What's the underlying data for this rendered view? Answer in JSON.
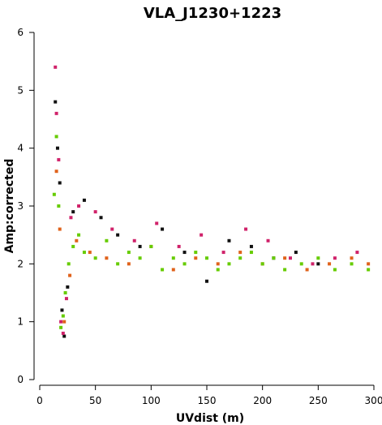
{
  "chart_data": {
    "type": "scatter",
    "title": "VLA_J1230+1223",
    "xlabel": "UVdist (m)",
    "ylabel": "Amp:corrected",
    "xlim": [
      0,
      300
    ],
    "ylim": [
      0,
      6
    ],
    "x_ticks": [
      "0",
      "50",
      "100",
      "150",
      "200",
      "250",
      "300"
    ],
    "y_ticks": [
      "0",
      "1",
      "2",
      "3",
      "4",
      "5",
      "6"
    ],
    "grid": false,
    "legend": "none",
    "series": [
      {
        "color": "#111111",
        "x": [
          14,
          16,
          18,
          20,
          22,
          25,
          30,
          40,
          55,
          70,
          90,
          110,
          130,
          150,
          170,
          190,
          210,
          230,
          250
        ],
        "y": [
          4.8,
          4.0,
          3.4,
          1.2,
          0.75,
          1.6,
          2.9,
          3.1,
          2.8,
          2.5,
          2.3,
          2.6,
          2.2,
          1.7,
          2.4,
          2.3,
          2.1,
          2.2,
          2.0
        ]
      },
      {
        "color": "#d0226a",
        "x": [
          14,
          15,
          17,
          19,
          21,
          24,
          28,
          35,
          50,
          65,
          85,
          105,
          125,
          145,
          165,
          185,
          205,
          225,
          245,
          265,
          285
        ],
        "y": [
          5.4,
          4.6,
          3.8,
          1.0,
          0.8,
          1.4,
          2.8,
          3.0,
          2.9,
          2.6,
          2.4,
          2.7,
          2.3,
          2.5,
          2.2,
          2.6,
          2.4,
          2.1,
          2.0,
          2.1,
          2.2
        ]
      },
      {
        "color": "#e0621b",
        "x": [
          15,
          18,
          22,
          27,
          33,
          45,
          60,
          80,
          100,
          120,
          140,
          160,
          180,
          200,
          220,
          240,
          260,
          280,
          295
        ],
        "y": [
          3.6,
          2.6,
          1.0,
          1.8,
          2.4,
          2.2,
          2.1,
          2.0,
          2.3,
          1.9,
          2.1,
          2.0,
          2.2,
          2.0,
          2.1,
          1.9,
          2.0,
          2.1,
          2.0
        ]
      },
      {
        "color": "#66cc00",
        "x": [
          13,
          15,
          17,
          19,
          21,
          23,
          26,
          30,
          35,
          40,
          50,
          60,
          70,
          80,
          90,
          100,
          110,
          120,
          130,
          140,
          150,
          160,
          170,
          180,
          190,
          200,
          210,
          220,
          235,
          250,
          265,
          280,
          295
        ],
        "y": [
          3.2,
          4.2,
          3.0,
          0.9,
          1.1,
          1.5,
          2.0,
          2.3,
          2.5,
          2.2,
          2.1,
          2.4,
          2.0,
          2.2,
          2.1,
          2.3,
          1.9,
          2.1,
          2.0,
          2.2,
          2.1,
          1.9,
          2.0,
          2.1,
          2.2,
          2.0,
          2.1,
          1.9,
          2.0,
          2.1,
          1.9,
          2.0,
          1.9
        ]
      }
    ]
  }
}
